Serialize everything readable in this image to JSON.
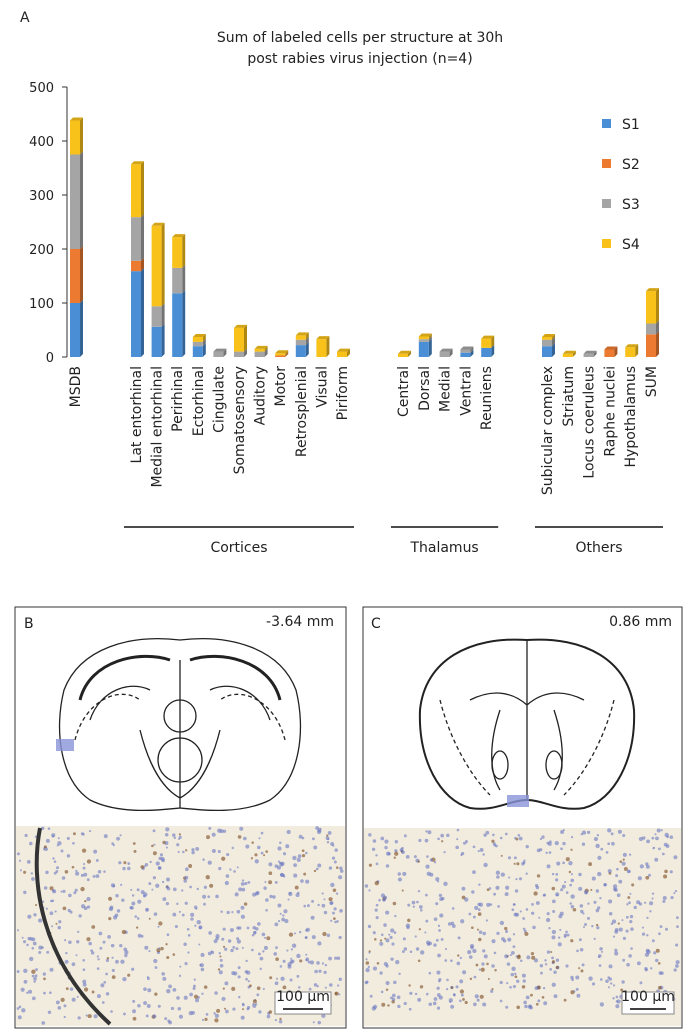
{
  "chart_data": {
    "type": "bar",
    "stacked": true,
    "panel_label": "A",
    "title": [
      "Sum of labeled cells per structure at 30h",
      "post rabies virus injection (n=4)"
    ],
    "categories": [
      "MSDB",
      "Lat entorhinal",
      "Medial entorhinal",
      "Perirhinal",
      "Ectorhinal",
      "Cingulate",
      "Somatosensory",
      "Auditory",
      "Motor",
      "Retrosplenial",
      "Visual",
      "Piriform",
      "Central",
      "Dorsal",
      "Medial",
      "Ventral",
      "Reuniens",
      "Subicular complex",
      "Striatum",
      "Locus coeruleus",
      "Raphe nuclei",
      "Hypothalamus",
      "SUM"
    ],
    "groups": [
      {
        "label": "Cortices",
        "from": 1,
        "to": 11
      },
      {
        "label": "Thalamus",
        "from": 12,
        "to": 16
      },
      {
        "label": "Others",
        "from": 17,
        "to": 22
      }
    ],
    "series": [
      {
        "name": "S1",
        "color": "#4a8fd6",
        "values": [
          100,
          159,
          56,
          118,
          20,
          0,
          0,
          0,
          0,
          22,
          0,
          0,
          0,
          28,
          0,
          8,
          17,
          20,
          0,
          0,
          0,
          0,
          0
        ]
      },
      {
        "name": "S2",
        "color": "#ec7a30",
        "values": [
          100,
          19,
          0,
          0,
          0,
          0,
          0,
          0,
          3,
          0,
          0,
          0,
          0,
          0,
          0,
          0,
          0,
          0,
          0,
          0,
          14,
          0,
          42
        ]
      },
      {
        "name": "S3",
        "color": "#a5a5a5",
        "values": [
          175,
          81,
          38,
          47,
          8,
          10,
          10,
          10,
          0,
          10,
          0,
          0,
          0,
          5,
          10,
          6,
          0,
          12,
          0,
          6,
          0,
          0,
          20
        ]
      },
      {
        "name": "S4",
        "color": "#f8c21a",
        "values": [
          63,
          98,
          149,
          57,
          9,
          0,
          44,
          5,
          4,
          8,
          33,
          10,
          6,
          5,
          0,
          0,
          17,
          5,
          6,
          0,
          0,
          18,
          60
        ]
      }
    ],
    "ylim": [
      0,
      500
    ],
    "yticks": [
      0,
      100,
      200,
      300,
      400,
      500
    ],
    "legend": "upper-right"
  },
  "panels": [
    {
      "label": "B",
      "coordinate": "-3.64 mm",
      "scale_bar": "100 µm"
    },
    {
      "label": "C",
      "coordinate": "0.86 mm",
      "scale_bar": "100 µm"
    }
  ]
}
